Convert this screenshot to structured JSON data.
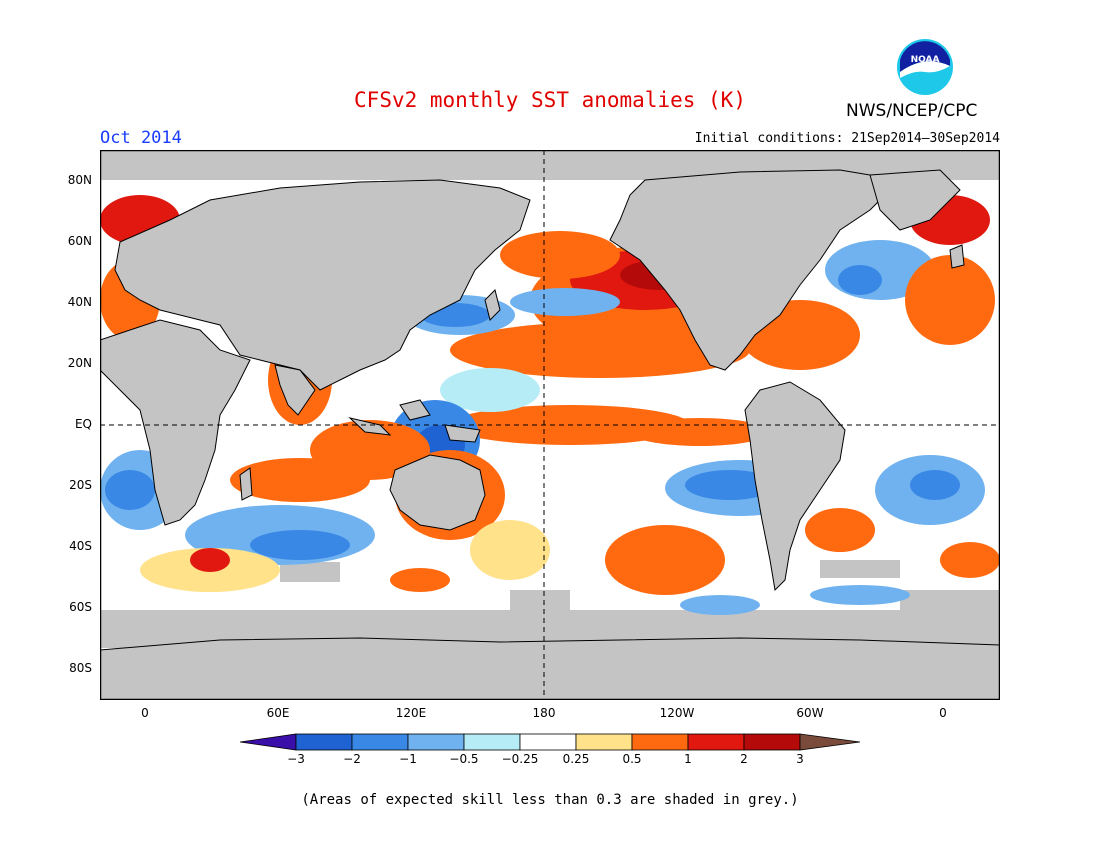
{
  "header": {
    "title": "CFSv2 monthly SST anomalies (K)",
    "org": "NWS/NCEP/CPC",
    "month": "Oct 2014",
    "initial_conditions": "Initial conditions: 21Sep2014–30Sep2014",
    "logo_text": "NOAA"
  },
  "axes": {
    "lat_labels": [
      "80N",
      "60N",
      "40N",
      "20N",
      "EQ",
      "20S",
      "40S",
      "60S",
      "80S"
    ],
    "lon_labels": [
      "0",
      "60E",
      "120E",
      "180",
      "120W",
      "60W",
      "0"
    ]
  },
  "colorbar": {
    "labels": [
      "−3",
      "−2",
      "−1",
      "−0.5",
      "−0.25",
      "0.25",
      "0.5",
      "1",
      "2",
      "3"
    ],
    "colors": [
      "#3a0ea8",
      "#1f63d2",
      "#3a88e6",
      "#6fb2ef",
      "#b5ecf5",
      "#ffffff",
      "#ffe28a",
      "#ff6a10",
      "#e01810",
      "#b40a0a",
      "#7a4a3a"
    ]
  },
  "footnote": "(Areas of expected skill less than 0.3 are shaded in grey.)",
  "colors": {
    "land": "#c4c4c4",
    "low_skill": "#c4c4c4",
    "ocean_neutral": "#ffffff",
    "title": "#e00000",
    "month": "#1a3cff"
  }
}
